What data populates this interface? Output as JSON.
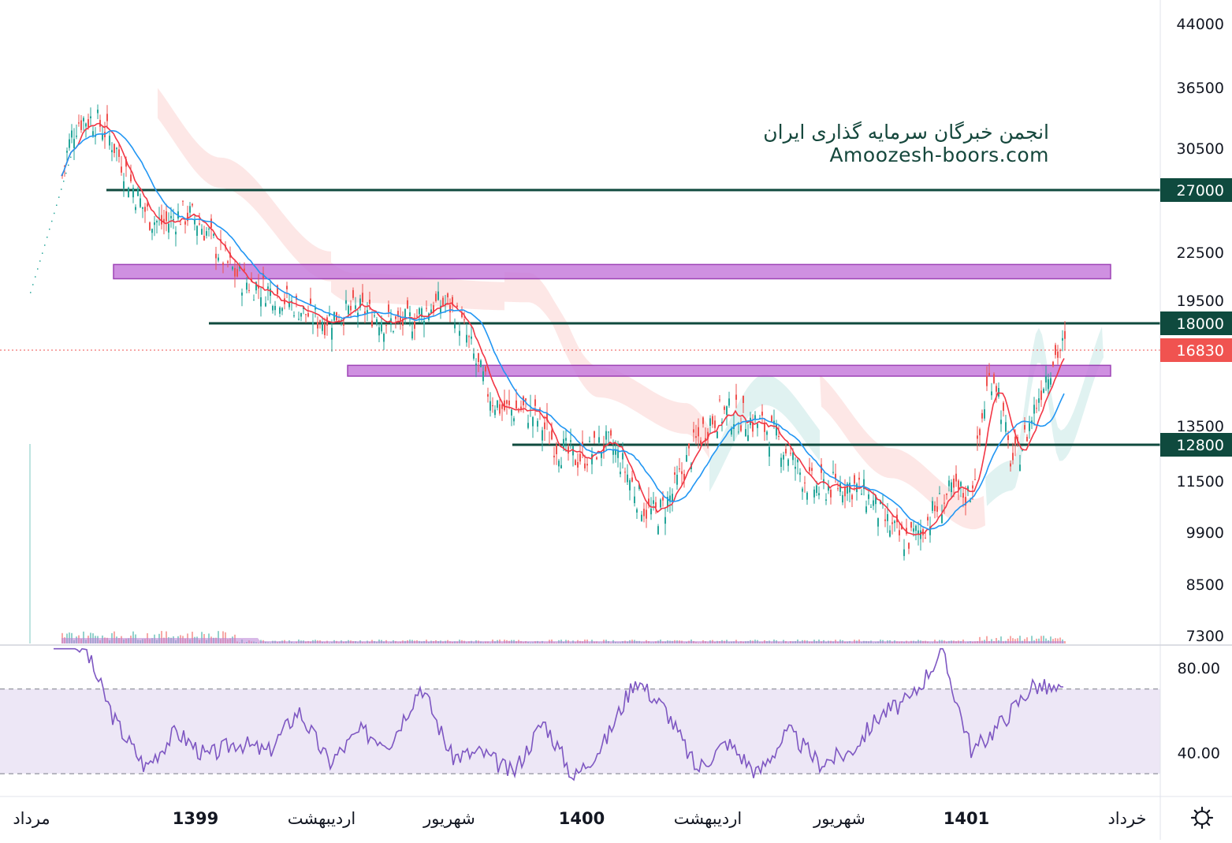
{
  "watermark": {
    "line1": "انجمن خبرگان سرمایه گذاری ایران",
    "line2": "Amoozesh-boors.com"
  },
  "price_axis": {
    "ticks": [
      "44000",
      "36500",
      "30500",
      "22500",
      "19500",
      "13500",
      "11500",
      "9900",
      "8500",
      "7300"
    ],
    "labels": [
      {
        "value": "27000",
        "color": "#0f4a3e"
      },
      {
        "value": "18000",
        "color": "#0f4a3e"
      },
      {
        "value": "16830",
        "color": "#f05350"
      },
      {
        "value": "12800",
        "color": "#0f4a3e"
      }
    ]
  },
  "rsi_axis": {
    "ticks": [
      "80.00",
      "40.00"
    ]
  },
  "time_axis": {
    "labels": [
      {
        "text": "مرداد",
        "bold": false
      },
      {
        "text": "1399",
        "bold": true
      },
      {
        "text": "اردیبهشت",
        "bold": false
      },
      {
        "text": "شهریور",
        "bold": false
      },
      {
        "text": "1400",
        "bold": true
      },
      {
        "text": "اردیبهشت",
        "bold": false
      },
      {
        "text": "شهریور",
        "bold": false
      },
      {
        "text": "1401",
        "bold": true
      },
      {
        "text": "خرداد",
        "bold": false
      }
    ]
  },
  "settings_icon": "gear-icon",
  "colors": {
    "up": "#26a69a",
    "down": "#ef5350",
    "level_line": "#0f4a3e",
    "zone_fill": "#c77ddc",
    "zone_stroke": "#8e24aa",
    "ma_fast": "#f23645",
    "ma_slow": "#2196f3",
    "rsi_line": "#7e57c2",
    "rsi_band": "#ede7f6"
  },
  "chart_data": {
    "type": "candlestick",
    "scale": "log",
    "title": "",
    "ylim": [
      7300,
      44000
    ],
    "horizontal_levels": [
      27000,
      18000,
      12800
    ],
    "last_price": 16830,
    "zones": [
      {
        "low": 20800,
        "high": 21700
      },
      {
        "low": 15600,
        "high": 16100
      }
    ],
    "price_path": [
      {
        "t": "start",
        "close": 20000
      },
      {
        "t": "peak",
        "close": 33000
      },
      {
        "t": "1399",
        "close": 25000
      },
      {
        "t": "اردیبهشت",
        "close": 19000
      },
      {
        "t": "شهریور",
        "close": 18500
      },
      {
        "t": "mid",
        "close": 14000
      },
      {
        "t": "1400",
        "close": 12600
      },
      {
        "t": "low1",
        "close": 10500
      },
      {
        "t": "اردیبهشت",
        "close": 14500
      },
      {
        "t": "شهریور",
        "close": 11500
      },
      {
        "t": "low2",
        "close": 9900
      },
      {
        "t": "1401",
        "close": 11200
      },
      {
        "t": "spike",
        "close": 16300
      },
      {
        "t": "pullback",
        "close": 12200
      },
      {
        "t": "خرداد",
        "close": 16830
      }
    ],
    "rsi": {
      "ylim": [
        20,
        90
      ],
      "bands": [
        30,
        70
      ],
      "path": [
        90,
        90,
        55,
        33,
        50,
        38,
        45,
        40,
        60,
        35,
        50,
        45,
        72,
        38,
        40,
        30,
        55,
        28,
        45,
        75,
        60,
        32,
        45,
        30,
        50,
        35,
        40,
        58,
        65,
        88,
        40,
        55,
        72,
        68
      ]
    }
  }
}
